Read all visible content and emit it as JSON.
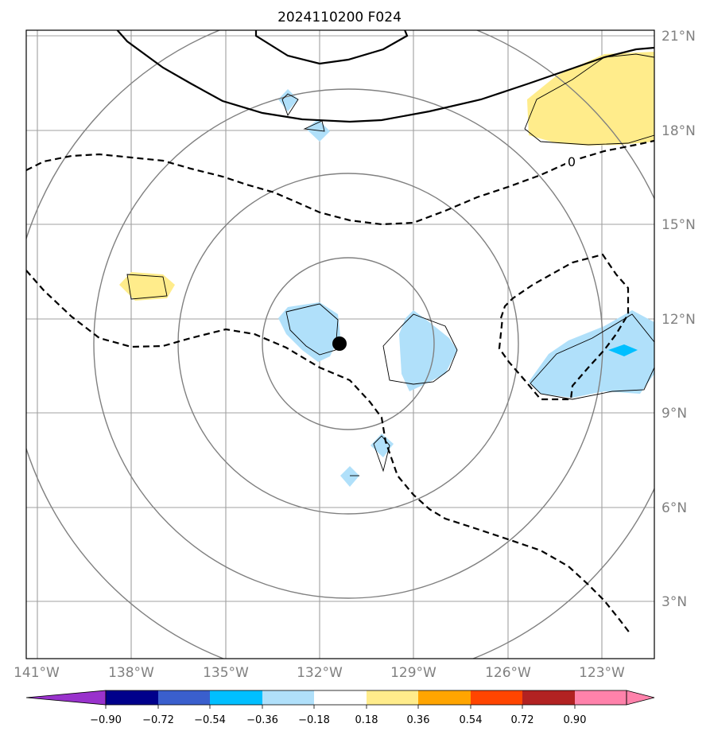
{
  "title": "2024110200 F024",
  "map": {
    "lat_labels": [
      "21°N",
      "18°N",
      "15°N",
      "12°N",
      "9°N",
      "6°N",
      "3°N"
    ],
    "lon_labels": [
      "141°W",
      "138°W",
      "135°W",
      "132°W",
      "129°W",
      "126°W",
      "123°W"
    ],
    "contour_label": "0",
    "colors": {
      "gridline": "#a0a0a0",
      "range_ring": "#808080",
      "positive_fill": "#ffec8b",
      "negative_fill": "#b0e0fa",
      "strong_negative_fill": "#00bfff",
      "storm_center": "#000000"
    }
  },
  "colorbar": {
    "labels": [
      "−0.90",
      "−0.72",
      "−0.54",
      "−0.36",
      "−0.18",
      "0.18",
      "0.36",
      "0.54",
      "0.72",
      "0.90"
    ],
    "colors": [
      "#9932cc",
      "#00008b",
      "#3a5fcd",
      "#00bfff",
      "#b0e0fa",
      "#ffffff",
      "#ffec8b",
      "#ffa500",
      "#ff4500",
      "#b22222",
      "#ff82ab"
    ]
  }
}
